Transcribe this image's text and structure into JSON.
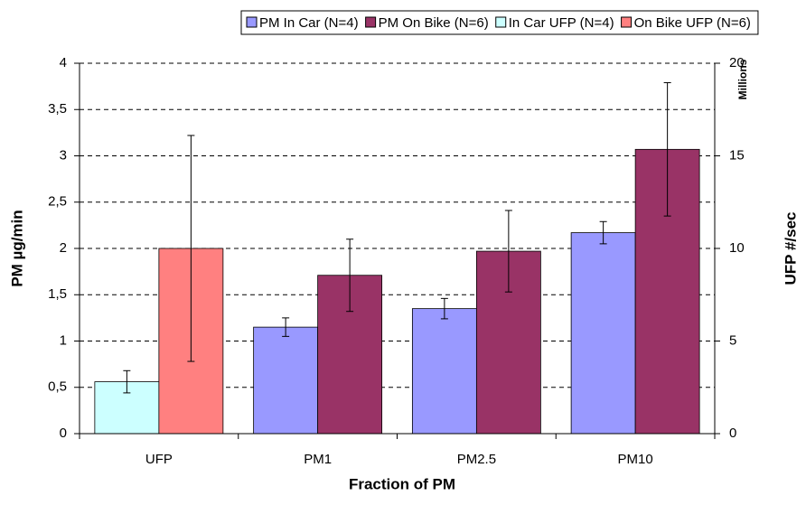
{
  "chart_data": {
    "type": "bar",
    "x_label": "Fraction of PM",
    "y_label": "PM µg/min",
    "y2_label": "UFP #/sec",
    "y2_unit": "Millions",
    "categories": [
      "UFP",
      "PM1",
      "PM2.5",
      "PM10"
    ],
    "series": [
      {
        "name": "PM In Car (N=4)",
        "color": "#9999ff",
        "values": [
          null,
          1.15,
          1.35,
          2.17
        ],
        "errors": [
          null,
          0.1,
          0.11,
          0.12
        ]
      },
      {
        "name": "PM On Bike (N=6)",
        "color": "#993366",
        "values": [
          null,
          1.71,
          1.97,
          3.07
        ],
        "errors": [
          null,
          0.39,
          0.44,
          0.72
        ]
      },
      {
        "name": "In Car UFP (N=4)",
        "color": "#ccffff",
        "axis": "y2",
        "values": [
          2.8,
          null,
          null,
          null
        ],
        "errors": [
          0.6,
          null,
          null,
          null
        ]
      },
      {
        "name": "On Bike UFP (N=6)",
        "color": "#ff8080",
        "axis": "y2",
        "values": [
          10,
          null,
          null,
          null
        ],
        "errors": [
          6.1,
          null,
          null,
          null
        ]
      }
    ],
    "ylim": [
      0,
      4
    ],
    "yticks": [
      0,
      {
        "value": 0.5,
        "label": "0,5"
      },
      1,
      {
        "value": 1.5,
        "label": "1,5"
      },
      2,
      {
        "value": 2.5,
        "label": "2,5"
      },
      3,
      {
        "value": 3.5,
        "label": "3,5"
      },
      4
    ],
    "y2lim": [
      0,
      20
    ],
    "y2ticks": [
      0,
      5,
      10,
      15,
      20
    ],
    "grid": true
  }
}
